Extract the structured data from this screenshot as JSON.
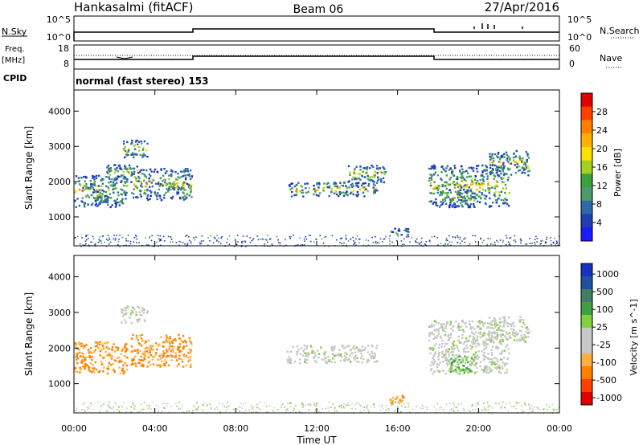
{
  "header": {
    "station": "Hankasalmi (fitACF)",
    "beam": "Beam 06",
    "date": "27/Apr/2016"
  },
  "strips": {
    "nsky_label": "N.Sky",
    "nsky_top": "10^5",
    "nsky_bottom": "10^0",
    "nsearch_label": "N.Search",
    "nsearch_top": "10^5",
    "nsearch_bottom": "10^0",
    "freq_label": "Freq.",
    "freq_unit": "[MHz]",
    "freq_top": "18",
    "freq_bottom": "8",
    "nave_label": "Nave",
    "nave_top": "60",
    "nave_bottom": "0",
    "cpid_label": "CPID",
    "cpid_value": "normal (fast stereo) 153"
  },
  "colors": {
    "power": [
      "#1a1aff",
      "#1f3fb0",
      "#2f6aa8",
      "#4a9a6a",
      "#3aa040",
      "#a4d020",
      "#ffe000",
      "#ffb000",
      "#ff8000",
      "#ff4000",
      "#e00000"
    ],
    "velocity": [
      "#e00000",
      "#ff4000",
      "#ff8000",
      "#ffb040",
      "#c8c8c8",
      "#c8c8c8",
      "#80d040",
      "#40a040",
      "#408060",
      "#2050a0",
      "#1a30c0"
    ]
  },
  "chart_data": [
    {
      "type": "heatmap",
      "panel": "power",
      "xlabel": "",
      "ylabel": "Slant Range [km]",
      "x_ticks": [
        "00:00",
        "04:00",
        "08:00",
        "12:00",
        "16:00",
        "20:00",
        "00:00"
      ],
      "y_ticks": [
        1000,
        2000,
        3000,
        4000
      ],
      "ylim": [
        180,
        4600
      ],
      "colorbar_label": "Power [dB]",
      "colorbar_ticks": [
        "4",
        "8",
        "12",
        "16",
        "20",
        "24",
        "28"
      ],
      "echo_regions": [
        {
          "t0": 0.0,
          "t1": 2.6,
          "r0": 1300,
          "r1": 2200
        },
        {
          "t0": 0.8,
          "t1": 1.8,
          "r0": 1450,
          "r1": 1800
        },
        {
          "t0": 1.6,
          "t1": 3.2,
          "r0": 2000,
          "r1": 2500
        },
        {
          "t0": 2.8,
          "t1": 5.8,
          "r0": 1500,
          "r1": 2400
        },
        {
          "t0": 4.0,
          "t1": 5.0,
          "r0": 1800,
          "r1": 2100
        },
        {
          "t0": 2.3,
          "t1": 3.6,
          "r0": 2700,
          "r1": 3200
        },
        {
          "t0": 10.5,
          "t1": 15.0,
          "r0": 1600,
          "r1": 2000
        },
        {
          "t0": 13.5,
          "t1": 15.4,
          "r0": 2000,
          "r1": 2500
        },
        {
          "t0": 15.6,
          "t1": 16.5,
          "r0": 450,
          "r1": 700
        },
        {
          "t0": 17.5,
          "t1": 21.5,
          "r0": 1300,
          "r1": 2500
        },
        {
          "t0": 18.5,
          "t1": 19.8,
          "r0": 1300,
          "r1": 1800
        },
        {
          "t0": 20.5,
          "t1": 22.5,
          "r0": 2200,
          "r1": 2900
        }
      ]
    },
    {
      "type": "heatmap",
      "panel": "velocity",
      "xlabel": "Time UT",
      "ylabel": "Slant Range [km]",
      "x_ticks": [
        "00:00",
        "04:00",
        "08:00",
        "12:00",
        "16:00",
        "20:00",
        "00:00"
      ],
      "y_ticks": [
        1000,
        2000,
        3000,
        4000
      ],
      "ylim": [
        180,
        4600
      ],
      "colorbar_label": "Velocity [m s^-1]",
      "colorbar_ticks": [
        "1000",
        "500",
        "100",
        "25",
        "-25",
        "-100",
        "-500",
        "-1000"
      ],
      "echo_regions": [
        {
          "t0": 0.0,
          "t1": 2.6,
          "r0": 1300,
          "r1": 2200,
          "v": -400
        },
        {
          "t0": 2.8,
          "t1": 5.8,
          "r0": 1500,
          "r1": 2400,
          "v": -350
        },
        {
          "t0": 2.3,
          "t1": 3.6,
          "r0": 2700,
          "r1": 3200,
          "v": 0
        },
        {
          "t0": 10.5,
          "t1": 15.0,
          "r0": 1600,
          "r1": 2100,
          "v": 0
        },
        {
          "t0": 15.6,
          "t1": 16.5,
          "r0": 450,
          "r1": 700,
          "v": -300
        },
        {
          "t0": 17.5,
          "t1": 21.5,
          "r0": 1300,
          "r1": 2800,
          "v": 0
        },
        {
          "t0": 18.5,
          "t1": 19.8,
          "r0": 1300,
          "r1": 1800,
          "v": 80
        },
        {
          "t0": 20.5,
          "t1": 22.5,
          "r0": 2200,
          "r1": 2900,
          "v": 0
        }
      ]
    }
  ]
}
